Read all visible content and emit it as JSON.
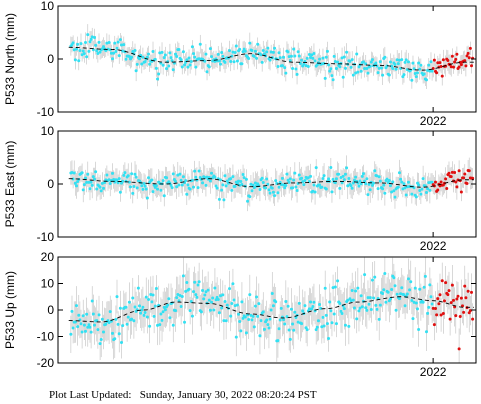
{
  "footer": {
    "label": "Plot Last Updated:",
    "date": "Sunday, January 30, 2022 08:20:24 PST"
  },
  "colors": {
    "point": "#33e0f2",
    "recent_point": "#e01010",
    "error_bar": "#c8c8c8",
    "model_line": "#000000",
    "frame": "#000000"
  },
  "chart_data": [
    {
      "type": "scatter",
      "ylabel": "P533 North (mm)",
      "ylim": [
        -10,
        10
      ],
      "yticks": [
        -10,
        0,
        10
      ],
      "xlim": [
        2018.5,
        2022.4
      ],
      "xticks": [
        {
          "value": 2022.0,
          "label": "2022"
        }
      ],
      "grid": false,
      "model": {
        "x": [
          2018.6,
          2019.0,
          2019.5,
          2019.9,
          2020.3,
          2020.7,
          2021.1,
          2021.5,
          2021.9,
          2022.3
        ],
        "y": [
          2.2,
          1.8,
          -0.6,
          -0.3,
          1.0,
          -0.6,
          -0.9,
          -1.2,
          -2.1,
          -0.6
        ]
      },
      "noise": 1.1,
      "error": 1.6,
      "recent_from": 2022.0
    },
    {
      "type": "scatter",
      "ylabel": "P533 East (mm)",
      "ylim": [
        -10,
        10
      ],
      "yticks": [
        -10,
        0,
        10
      ],
      "xlim": [
        2018.5,
        2022.4
      ],
      "xticks": [
        {
          "value": 2022.0,
          "label": "2022"
        }
      ],
      "grid": false,
      "model": {
        "x": [
          2018.6,
          2019.0,
          2019.5,
          2019.9,
          2020.3,
          2020.7,
          2021.1,
          2021.5,
          2021.9,
          2022.3
        ],
        "y": [
          1.0,
          0.5,
          0.0,
          1.0,
          -0.5,
          0.2,
          0.5,
          0.2,
          -0.6,
          0.8
        ]
      },
      "noise": 1.1,
      "error": 2.0,
      "recent_from": 2022.0
    },
    {
      "type": "scatter",
      "ylabel": "P533 Up (mm)",
      "ylim": [
        -20,
        20
      ],
      "yticks": [
        -20,
        -10,
        0,
        10,
        20
      ],
      "xlim": [
        2018.5,
        2022.4
      ],
      "xticks": [
        {
          "value": 2022.0,
          "label": "2022"
        }
      ],
      "grid": false,
      "model": {
        "x": [
          2018.6,
          2018.9,
          2019.3,
          2019.6,
          2019.9,
          2020.3,
          2020.6,
          2021.0,
          2021.3,
          2021.7,
          2022.0,
          2022.3
        ],
        "y": [
          -4.0,
          -4.5,
          0.0,
          3.0,
          2.5,
          -1.5,
          -3.0,
          0.5,
          3.0,
          5.0,
          3.5,
          1.0
        ]
      },
      "noise": 4.5,
      "error": 6.5,
      "recent_from": 2022.0
    }
  ]
}
